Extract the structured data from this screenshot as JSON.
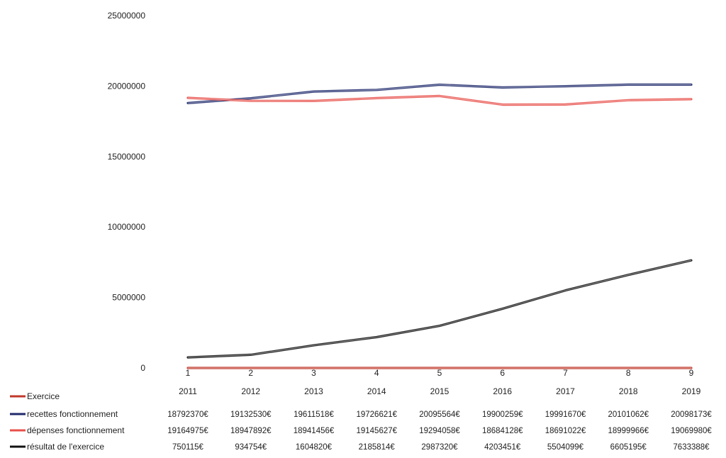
{
  "chart_data": {
    "type": "line",
    "x": [
      1,
      2,
      3,
      4,
      5,
      6,
      7,
      8,
      9
    ],
    "x_tick_labels": [
      "1",
      "2",
      "3",
      "4",
      "5",
      "6",
      "7",
      "8",
      "9"
    ],
    "years": [
      "2011",
      "2012",
      "2013",
      "2014",
      "2015",
      "2016",
      "2017",
      "2018",
      "2019"
    ],
    "ylim": [
      0,
      25000000
    ],
    "y_ticks": [
      0,
      5000000,
      10000000,
      15000000,
      20000000,
      25000000
    ],
    "y_tick_labels": [
      "0",
      "5000000",
      "10000000",
      "15000000",
      "20000000",
      "25000000"
    ],
    "grid": false,
    "legend_position": "bottom-left",
    "series": [
      {
        "name": "Exercice",
        "color": "#c0392b",
        "values": [
          2011,
          2012,
          2013,
          2014,
          2015,
          2016,
          2017,
          2018,
          2019
        ],
        "table_cells": [
          "2011",
          "2012",
          "2013",
          "2014",
          "2015",
          "2016",
          "2017",
          "2018",
          "2019"
        ]
      },
      {
        "name": "recettes fonctionnement",
        "color": "#1f2a6b",
        "values": [
          18792370,
          19132530,
          19611518,
          19726621,
          20095564,
          19900259,
          19991670,
          20101062,
          20098173
        ],
        "table_cells": [
          "18792370€",
          "19132530€",
          "19611518€",
          "19726621€",
          "20095564€",
          "19900259€",
          "19991670€",
          "20101062€",
          "20098173€"
        ]
      },
      {
        "name": "dépenses fonctionnement",
        "color": "#e8504a",
        "values": [
          19164975,
          18947892,
          18941456,
          19145627,
          19294058,
          18684128,
          18691022,
          18999966,
          19069980
        ],
        "table_cells": [
          "19164975€",
          "18947892€",
          "18941456€",
          "19145627€",
          "19294058€",
          "18684128€",
          "18691022€",
          "18999966€",
          "19069980€"
        ]
      },
      {
        "name": "résultat de l'exercice",
        "color": "#111111",
        "values": [
          750115,
          934754,
          1604820,
          2185814,
          2987320,
          4203451,
          5504099,
          6605195,
          7633388
        ],
        "table_cells": [
          "750115€",
          "934754€",
          "1604820€",
          "2185814€",
          "2987320€",
          "4203451€",
          "5504099€",
          "6605195€",
          "7633388€"
        ]
      }
    ]
  }
}
